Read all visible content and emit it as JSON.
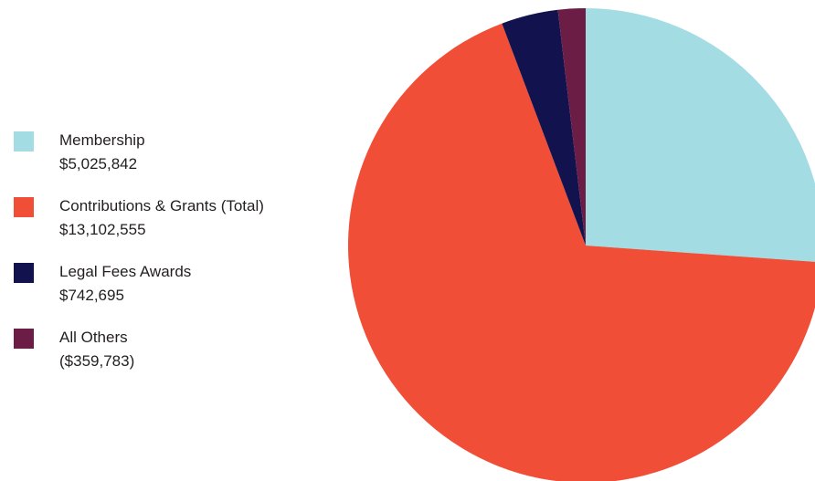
{
  "chart_data": {
    "type": "pie",
    "start": "top",
    "direction": "clockwise",
    "slices": [
      {
        "name": "Membership",
        "value_label": "$5,025,842",
        "value": 5025842,
        "color": "#a4dce4"
      },
      {
        "name": "Contributions & Grants (Total)",
        "value_label": "$13,102,555",
        "value": 13102555,
        "color": "#f04e37"
      },
      {
        "name": "Legal Fees Awards",
        "value_label": "$742,695",
        "value": 742695,
        "color": "#12124f"
      },
      {
        "name": "All Others",
        "value_label": "($359,783)",
        "value": 359783,
        "color": "#6c1d45"
      }
    ]
  }
}
